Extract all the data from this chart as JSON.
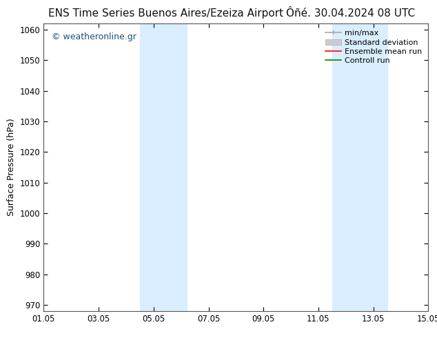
{
  "title_left": "ENS Time Series Buenos Aires/Ezeiza Airport",
  "title_right": "Ôñé. 30.04.2024 08 UTC",
  "ylabel": "Surface Pressure (hPa)",
  "ylim": [
    968,
    1062
  ],
  "yticks": [
    970,
    980,
    990,
    1000,
    1010,
    1020,
    1030,
    1040,
    1050,
    1060
  ],
  "xtick_labels": [
    "01.05",
    "03.05",
    "05.05",
    "07.05",
    "09.05",
    "11.05",
    "13.05",
    "15.05"
  ],
  "xtick_positions": [
    0,
    2,
    4,
    6,
    8,
    10,
    12,
    14
  ],
  "xlim": [
    0,
    14
  ],
  "shaded_bands": [
    {
      "x_start": 3.5,
      "x_end": 5.2,
      "color": "#daeeff"
    },
    {
      "x_start": 10.5,
      "x_end": 12.5,
      "color": "#daeeff"
    }
  ],
  "watermark": "© weatheronline.gr",
  "watermark_color": "#1a5276",
  "legend_items": [
    {
      "label": "min/max",
      "color": "#aaaaaa",
      "lw": 1.2
    },
    {
      "label": "Standard deviation",
      "color": "#cccccc",
      "lw": 7
    },
    {
      "label": "Ensemble mean run",
      "color": "#ff0000",
      "lw": 1.2
    },
    {
      "label": "Controll run",
      "color": "#008800",
      "lw": 1.2
    }
  ],
  "background_color": "#ffffff",
  "plot_bg_color": "#ffffff",
  "border_color": "#555555",
  "title_fontsize": 11,
  "axis_label_fontsize": 9,
  "tick_fontsize": 8.5,
  "legend_fontsize": 8
}
